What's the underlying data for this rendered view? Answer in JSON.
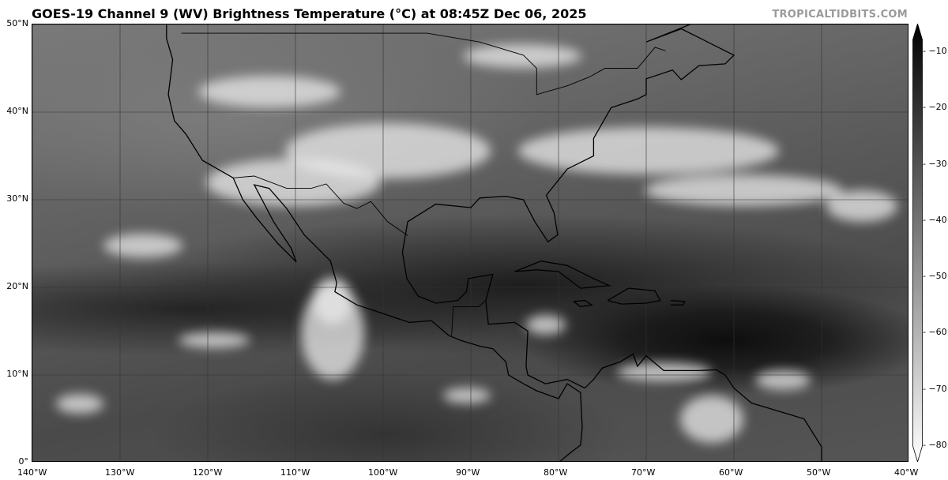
{
  "title": "GOES-19 Channel 9 (WV) Brightness Temperature (°C) at 08:45Z Dec 06, 2025",
  "credit": "TROPICALTIDBITS.COM",
  "map": {
    "lon_range": [
      -140,
      -40
    ],
    "lat_range": [
      0,
      50
    ],
    "grid": true,
    "lon_labels": [
      "140°W",
      "130°W",
      "120°W",
      "110°W",
      "100°W",
      "90°W",
      "80°W",
      "70°W",
      "60°W",
      "50°W",
      "40°W"
    ],
    "lat_labels": [
      "0°",
      "10°N",
      "20°N",
      "30°N",
      "40°N",
      "50°N"
    ]
  },
  "colorbar": {
    "min": -80,
    "max": -10,
    "extend": "both",
    "colormap": "grayscale (white = cold, black = warm)",
    "tick_labels": [
      "−10",
      "−20",
      "−30",
      "−40",
      "−50",
      "−60",
      "−70",
      "−80"
    ],
    "colors": {
      "warm": "#000000",
      "cold": "#ffffff"
    }
  }
}
